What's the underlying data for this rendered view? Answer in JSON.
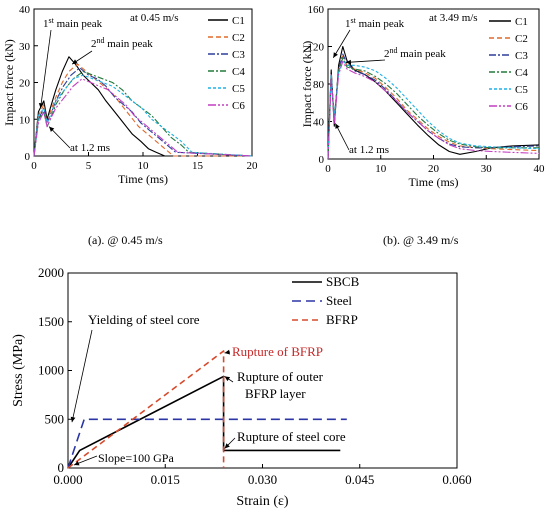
{
  "chart_data": [
    {
      "type": "line",
      "panel": "a",
      "caption": "(a). @ 0.45 m/s",
      "xlabel": "Time (ms)",
      "ylabel": "Impact force (kN)",
      "xlim": [
        0,
        20
      ],
      "ylim": [
        0,
        40
      ],
      "xticks": [
        0,
        5,
        10,
        15,
        20
      ],
      "yticks": [
        0,
        10,
        20,
        30,
        40
      ],
      "speed_label": "at 0.45 m/s",
      "annotations": {
        "peak1_main": "1",
        "peak1_sup": "st",
        "peak1_tail": " main peak",
        "peak2_main": "2",
        "peak2_sup": "nd",
        "peak2_tail": " main peak",
        "time_note": "at 1.2 ms"
      },
      "series": [
        {
          "name": "C1",
          "color": "#000000",
          "dash": "",
          "x": [
            0,
            0.4,
            0.9,
            1.2,
            1.5,
            2,
            2.6,
            3.2,
            3.8,
            4.5,
            5.2,
            5.9,
            6.6,
            7.4,
            8.2,
            9,
            9.8,
            10.5,
            11.2,
            12,
            20
          ],
          "y": [
            0,
            12,
            15,
            10,
            13,
            18,
            23,
            27,
            25,
            22,
            20,
            18,
            15,
            12,
            9,
            6,
            4,
            2,
            1,
            0,
            0
          ]
        },
        {
          "name": "C2",
          "color": "#e06a2c",
          "dash": "5,3",
          "x": [
            0,
            0.4,
            0.9,
            1.2,
            1.5,
            2,
            2.6,
            3.2,
            4,
            4.8,
            5.6,
            6.4,
            7.2,
            8,
            8.8,
            9.6,
            10.4,
            11.2,
            12,
            12.8,
            20
          ],
          "y": [
            0,
            11,
            14,
            9,
            12,
            16,
            20,
            23,
            25,
            23,
            21,
            19,
            17,
            14,
            11,
            8,
            6,
            4,
            2,
            0,
            0
          ]
        },
        {
          "name": "C3",
          "color": "#2e3f9a",
          "dash": "7,2,2,2",
          "x": [
            0,
            0.4,
            0.9,
            1.2,
            1.5,
            2,
            2.7,
            3.4,
            4.2,
            5,
            5.8,
            6.6,
            7.4,
            8.2,
            9,
            9.8,
            10.6,
            11.4,
            12.2,
            13,
            20
          ],
          "y": [
            0,
            10,
            13,
            9,
            11,
            15,
            19,
            22,
            24,
            22,
            21,
            19,
            16,
            14,
            12,
            9,
            7,
            5,
            3,
            1,
            0
          ]
        },
        {
          "name": "C4",
          "color": "#237a3c",
          "dash": "6,2,2,2",
          "x": [
            0,
            0.4,
            0.9,
            1.2,
            1.5,
            2,
            2.8,
            3.6,
            4.5,
            5.4,
            6.3,
            7.2,
            8.1,
            9,
            9.9,
            10.8,
            11.7,
            12.6,
            13.5,
            14.2,
            20
          ],
          "y": [
            0,
            10,
            12,
            8,
            10,
            14,
            18,
            21,
            23,
            22,
            21,
            20,
            18,
            15,
            13,
            11,
            8,
            5,
            3,
            1,
            0
          ]
        },
        {
          "name": "C5",
          "color": "#1fb1e6",
          "dash": "3,2",
          "x": [
            0,
            0.4,
            0.9,
            1.2,
            1.5,
            2,
            2.8,
            3.6,
            4.5,
            5.4,
            6.3,
            7.2,
            8.1,
            9,
            9.9,
            10.8,
            11.7,
            12.6,
            13.5,
            14.5,
            20
          ],
          "y": [
            0,
            11,
            13,
            9,
            11,
            15,
            18,
            21,
            22,
            21,
            20,
            19,
            17,
            15,
            13,
            10,
            8,
            6,
            4,
            1,
            0
          ]
        },
        {
          "name": "C6",
          "color": "#c43fc2",
          "dash": "8,2,2,2,2,2",
          "x": [
            0,
            0.4,
            0.9,
            1.2,
            1.5,
            2,
            2.8,
            3.6,
            4.4,
            5.2,
            6,
            6.8,
            7.6,
            8.4,
            9.2,
            10,
            10.8,
            11.6,
            12.4,
            13.2,
            20
          ],
          "y": [
            0,
            9,
            12,
            8,
            10,
            13,
            16,
            19,
            21,
            20,
            19,
            18,
            16,
            14,
            11,
            9,
            7,
            5,
            3,
            1,
            0
          ]
        }
      ]
    },
    {
      "type": "line",
      "panel": "b",
      "caption": "(b). @ 3.49 m/s",
      "xlabel": "Time (ms)",
      "ylabel": "Impact force (kN)",
      "xlim": [
        0,
        40
      ],
      "ylim": [
        0,
        160
      ],
      "xticks": [
        0,
        10,
        20,
        30,
        40
      ],
      "yticks": [
        0,
        40,
        80,
        120,
        160
      ],
      "speed_label": "at 3.49 m/s",
      "annotations": {
        "peak1_main": "1",
        "peak1_sup": "st",
        "peak1_tail": " main peak",
        "peak2_main": "2",
        "peak2_sup": "nd",
        "peak2_tail": " main peak",
        "time_note": "at 1.2 ms"
      },
      "series": [
        {
          "name": "C1",
          "color": "#000000",
          "dash": "",
          "x": [
            0,
            0.6,
            1.2,
            2,
            2.8,
            3.6,
            5,
            7,
            9,
            11,
            13,
            15,
            17,
            19,
            21,
            23,
            25,
            28,
            31,
            35,
            40
          ],
          "y": [
            0,
            95,
            35,
            100,
            120,
            105,
            95,
            90,
            82,
            72,
            60,
            48,
            36,
            25,
            15,
            8,
            5,
            8,
            12,
            14,
            15
          ]
        },
        {
          "name": "C2",
          "color": "#e06a2c",
          "dash": "5,3",
          "x": [
            0,
            0.6,
            1.2,
            2,
            2.8,
            3.6,
            5,
            7,
            9,
            11,
            13,
            15,
            17,
            19,
            21,
            23,
            25,
            28,
            31,
            35,
            40
          ],
          "y": [
            0,
            92,
            40,
            95,
            110,
            100,
            96,
            92,
            86,
            76,
            65,
            52,
            42,
            32,
            24,
            18,
            14,
            12,
            11,
            10,
            9
          ]
        },
        {
          "name": "C3",
          "color": "#2e3f9a",
          "dash": "7,2,2,2",
          "x": [
            0,
            0.6,
            1.2,
            2,
            2.8,
            3.6,
            5,
            7,
            9,
            11,
            13,
            15,
            17,
            19,
            21,
            23,
            25,
            28,
            31,
            35,
            40
          ],
          "y": [
            0,
            90,
            42,
            96,
            112,
            102,
            94,
            90,
            84,
            74,
            62,
            50,
            40,
            30,
            22,
            16,
            13,
            12,
            12,
            13,
            14
          ]
        },
        {
          "name": "C4",
          "color": "#237a3c",
          "dash": "6,2,2,2",
          "x": [
            0,
            0.6,
            1.2,
            2,
            2.8,
            3.6,
            5,
            7,
            9,
            11,
            13,
            15,
            17,
            19,
            21,
            23,
            25,
            28,
            31,
            35,
            40
          ],
          "y": [
            0,
            88,
            44,
            94,
            108,
            98,
            96,
            94,
            88,
            80,
            70,
            58,
            46,
            36,
            27,
            20,
            16,
            13,
            12,
            12,
            12
          ]
        },
        {
          "name": "C5",
          "color": "#1fb1e6",
          "dash": "3,2",
          "x": [
            0,
            0.6,
            1.2,
            2,
            2.8,
            3.6,
            5,
            7,
            9,
            11,
            13,
            15,
            17,
            19,
            21,
            23,
            25,
            28,
            31,
            35,
            40
          ],
          "y": [
            0,
            90,
            45,
            92,
            105,
            100,
            100,
            98,
            94,
            86,
            76,
            64,
            52,
            40,
            30,
            22,
            17,
            14,
            13,
            12,
            11
          ]
        },
        {
          "name": "C6",
          "color": "#c43fc2",
          "dash": "8,2,2,2,2,2",
          "x": [
            0,
            0.6,
            1.2,
            2,
            2.8,
            3.6,
            5,
            7,
            9,
            11,
            13,
            15,
            17,
            19,
            21,
            23,
            25,
            28,
            31,
            35,
            40
          ],
          "y": [
            0,
            85,
            38,
            90,
            104,
            96,
            92,
            88,
            82,
            72,
            62,
            50,
            40,
            30,
            22,
            15,
            11,
            9,
            8,
            7,
            6
          ]
        }
      ]
    },
    {
      "type": "line",
      "panel": "c",
      "xlabel": "Strain (ε)",
      "ylabel": "Stress (MPa)",
      "xlim": [
        0,
        0.06
      ],
      "ylim": [
        0,
        2000
      ],
      "xticks": [
        "0.000",
        "0.015",
        "0.030",
        "0.045",
        "0.060"
      ],
      "xtick_values": [
        0,
        0.015,
        0.03,
        0.045,
        0.06
      ],
      "yticks": [
        0,
        500,
        1000,
        1500,
        2000
      ],
      "annotations": {
        "yield": "Yielding of steel core",
        "bfrp_rupture": "Rupture of BFRP",
        "outer_rupture_1": "Rupture of outer",
        "outer_rupture_2": "BFRP layer",
        "core_rupture": "Rupture of steel core",
        "slope": "Slope=100 GPa"
      },
      "series": [
        {
          "name": "SBCB",
          "color": "#000000",
          "dash": "",
          "x": [
            0,
            0.0018,
            0.024,
            0.024,
            0.042
          ],
          "y": [
            0,
            180,
            940,
            180,
            180
          ]
        },
        {
          "name": "Steel",
          "color": "#2b35a6",
          "dash": "9,5",
          "x": [
            0,
            0.0025,
            0.043
          ],
          "y": [
            0,
            500,
            500
          ]
        },
        {
          "name": "BFRP",
          "color": "#d64a2c",
          "dash": "6,4",
          "x": [
            0,
            0.024,
            0.024
          ],
          "y": [
            0,
            1200,
            0
          ]
        }
      ]
    }
  ]
}
